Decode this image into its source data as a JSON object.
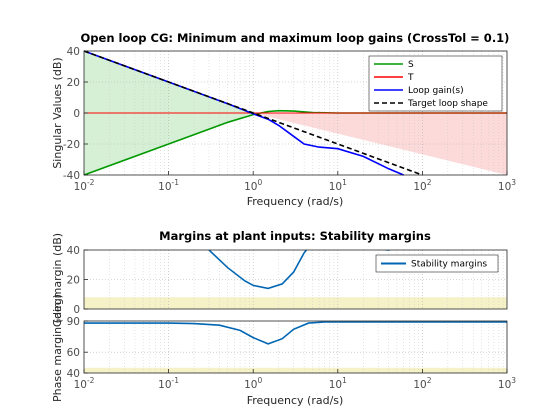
{
  "chart_data": [
    {
      "type": "line",
      "title": "Open loop CG: Minimum and maximum loop gains (CrossTol = 0.1)",
      "xlabel": "Frequency (rad/s)",
      "ylabel": "Singular Values (dB)",
      "xscale": "log",
      "xlim": [
        0.01,
        1000
      ],
      "ylim": [
        -40,
        40
      ],
      "xticks": [
        {
          "v": 0.01,
          "b": "10",
          "e": "-2"
        },
        {
          "v": 0.1,
          "b": "10",
          "e": "-1"
        },
        {
          "v": 1,
          "b": "10",
          "e": "0"
        },
        {
          "v": 10,
          "b": "10",
          "e": "1"
        },
        {
          "v": 100,
          "b": "10",
          "e": "2"
        },
        {
          "v": 1000,
          "b": "10",
          "e": "3"
        }
      ],
      "yticks": [
        "40",
        "20",
        "0",
        "-20",
        "-40"
      ],
      "ytick_values": [
        40,
        20,
        0,
        -20,
        -40
      ],
      "grid": "dotted",
      "legend_position": "top-right",
      "series": [
        {
          "name": "S",
          "color": "#009900",
          "dash": "solid",
          "x": [
            0.01,
            0.1,
            0.5,
            1.0,
            1.5,
            2,
            3,
            5,
            10,
            100,
            1000
          ],
          "y": [
            -40,
            -20,
            -6,
            -1,
            1,
            1.5,
            1.2,
            0.3,
            0,
            0,
            0
          ]
        },
        {
          "name": "T",
          "color": "#ff0000",
          "dash": "solid",
          "x": [
            0.01,
            1000
          ],
          "y": [
            0,
            0
          ]
        },
        {
          "name": "Loop gain(s)",
          "color": "#0000ff",
          "dash": "solid",
          "x": [
            0.01,
            0.1,
            0.5,
            1,
            1.5,
            2,
            3,
            4,
            6,
            10,
            20,
            40,
            60
          ],
          "y": [
            40,
            20,
            6,
            -0.5,
            -4,
            -8,
            -15,
            -20,
            -22,
            -23,
            -28,
            -36,
            -40
          ]
        },
        {
          "name": "Target loop shape",
          "color": "#000000",
          "dash": "dashed",
          "x": [
            0.01,
            100
          ],
          "y": [
            40,
            -40
          ]
        }
      ],
      "regions": [
        {
          "color": "#d6f0d6",
          "x": [
            0.01,
            1
          ],
          "y_upper": [
            40,
            0
          ],
          "y_lower": [
            -40,
            0
          ]
        },
        {
          "color": "#fcdada",
          "x": [
            1,
            1000
          ],
          "y_upper": [
            0,
            0
          ],
          "y_lower": [
            0,
            -40
          ],
          "y_lower_clip": -40
        }
      ]
    },
    {
      "type": "line",
      "title": "Margins at plant inputs: Stability margins",
      "xlabel": "Frequency  (rad/s)",
      "xscale": "log",
      "xlim": [
        0.01,
        1000
      ],
      "legend_position": "top-right",
      "grid": "dotted",
      "series": [
        {
          "name": "Stability margins",
          "color": "#0066b3",
          "dash": "solid"
        }
      ],
      "subplots": [
        {
          "ylabel": "Gain margin (dB)",
          "ylim": [
            0,
            40
          ],
          "yticks": [
            "40",
            "20",
            "0"
          ],
          "ytick_values": [
            40,
            20,
            0
          ],
          "band": {
            "color": "#f6f2c8",
            "y": [
              0,
              8
            ]
          },
          "x": [
            0.3,
            0.5,
            0.8,
            1.0,
            1.5,
            2.2,
            3.0,
            4.0,
            5.5,
            8.0,
            12,
            20,
            40,
            50
          ],
          "y": [
            40,
            28,
            19,
            16,
            14,
            17,
            25,
            38,
            48,
            55,
            50,
            42,
            40,
            42
          ]
        },
        {
          "ylabel": "Phase margin (deg)",
          "ylim": [
            40,
            90
          ],
          "yticks": [
            "90",
            "60",
            "40"
          ],
          "ytick_values": [
            90,
            60,
            40
          ],
          "band": {
            "color": "#f6f2c8",
            "y": [
              40,
              45
            ]
          },
          "x": [
            0.01,
            0.1,
            0.2,
            0.4,
            0.7,
            1.0,
            1.5,
            2.2,
            3.0,
            4.5,
            7,
            10,
            100,
            1000
          ],
          "y": [
            88,
            88,
            87.5,
            86,
            81,
            74,
            68,
            73,
            82,
            88,
            89,
            89,
            89,
            89
          ]
        }
      ]
    }
  ]
}
